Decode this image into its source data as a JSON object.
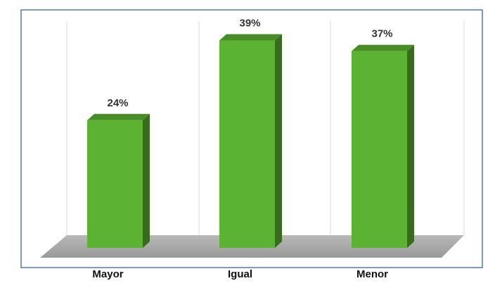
{
  "chart_data": {
    "type": "bar",
    "categories": [
      "Mayor",
      "Igual",
      "Menor"
    ],
    "values": [
      24,
      39,
      37
    ],
    "value_labels": [
      "24%",
      "39%",
      "37%"
    ],
    "color": "#5bb331"
  }
}
